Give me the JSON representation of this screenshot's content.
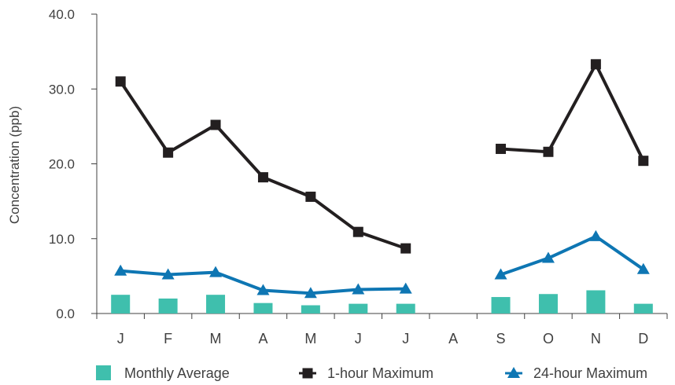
{
  "chart_data": {
    "type": "bar",
    "ylabel": "Concentration (ppb)",
    "ylim": [
      0,
      40
    ],
    "yticks": [
      "0.0",
      "10.0",
      "20.0",
      "30.0",
      "40.0"
    ],
    "categories": [
      "J",
      "F",
      "M",
      "A",
      "M",
      "J",
      "J",
      "A",
      "S",
      "O",
      "N",
      "D"
    ],
    "grid": false,
    "legend_position": "bottom",
    "series": [
      {
        "name": "Monthly Average",
        "kind": "bar",
        "color": "#3fbfad",
        "values": [
          2.5,
          2.0,
          2.5,
          1.4,
          1.1,
          1.3,
          1.3,
          null,
          2.2,
          2.6,
          3.1,
          1.3
        ]
      },
      {
        "name": "1-hour Maximum",
        "kind": "line",
        "marker": "square",
        "color": "#231f20",
        "values": [
          31.0,
          21.5,
          25.2,
          18.2,
          15.6,
          10.9,
          8.7,
          null,
          22.0,
          21.6,
          33.3,
          20.4
        ]
      },
      {
        "name": "24-hour Maximum",
        "kind": "line",
        "marker": "triangle",
        "color": "#0e76b3",
        "values": [
          5.7,
          5.2,
          5.5,
          3.1,
          2.7,
          3.2,
          3.3,
          null,
          5.2,
          7.4,
          10.3,
          5.9
        ]
      }
    ]
  }
}
